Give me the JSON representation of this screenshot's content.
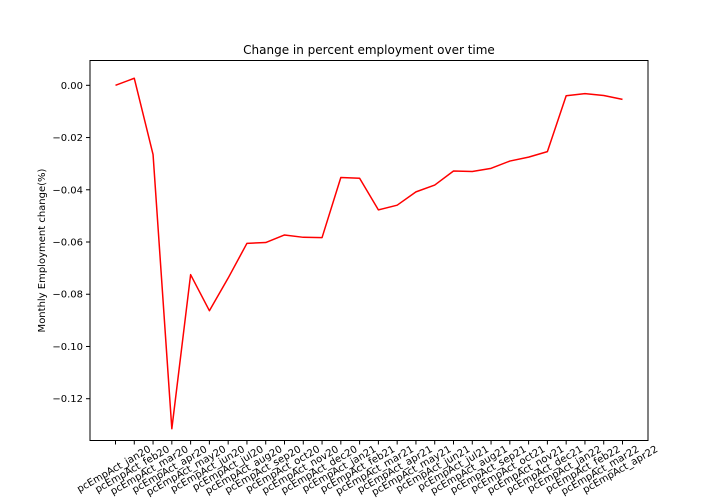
{
  "chart_data": {
    "type": "line",
    "title": "Change in percent employment over time",
    "xlabel": "",
    "ylabel": "Monthly Employment change(%)",
    "ylim": [
      -0.136,
      0.0095
    ],
    "yticks": [
      0.0,
      -0.02,
      -0.04,
      -0.06,
      -0.08,
      -0.1,
      -0.12
    ],
    "ytick_labels": [
      "0.00",
      "−0.02",
      "−0.04",
      "−0.06",
      "−0.08",
      "−0.10",
      "−0.12"
    ],
    "grid": false,
    "legend": "none",
    "line_color": "#ff0000",
    "categories": [
      "pcEmpAct_jan20",
      "pcEmpAct_feb20",
      "pcEmpAct_mar20",
      "pcEmpAct_apr20",
      "pcEmpAct_may20",
      "pcEmpAct_jun20",
      "pcEmpAct_jul20",
      "pcEmpAct_aug20",
      "pcEmpAct_sep20",
      "pcEmpAct_oct20",
      "pcEmpAct_nov20",
      "pcEmpAct_dec20",
      "pcEmpAct_jan21",
      "pcEmpAct_feb21",
      "pcEmpAct_mar21",
      "pcEmpAct_apr21",
      "pcEmpAct_may21",
      "pcEmpAct_jun21",
      "pcEmpAct_jul21",
      "pcEmpAct_aug21",
      "pcEmpAct_sep21",
      "pcEmpAct_oct21",
      "pcEmpAct_nov21",
      "pcEmpAct_dec21",
      "pcEmpAct_jan22",
      "pcEmpAct_feb22",
      "pcEmpAct_mar22",
      "pcEmpAct_apr22"
    ],
    "values": [
      0.0,
      0.0027,
      -0.0265,
      -0.1315,
      -0.0725,
      -0.0863,
      -0.0738,
      -0.0605,
      -0.0602,
      -0.0573,
      -0.0582,
      -0.0583,
      -0.0353,
      -0.0356,
      -0.0477,
      -0.0459,
      -0.0408,
      -0.0382,
      -0.0328,
      -0.033,
      -0.0318,
      -0.029,
      -0.0275,
      -0.0254,
      -0.004,
      -0.0032,
      -0.0039,
      -0.0054
    ]
  }
}
